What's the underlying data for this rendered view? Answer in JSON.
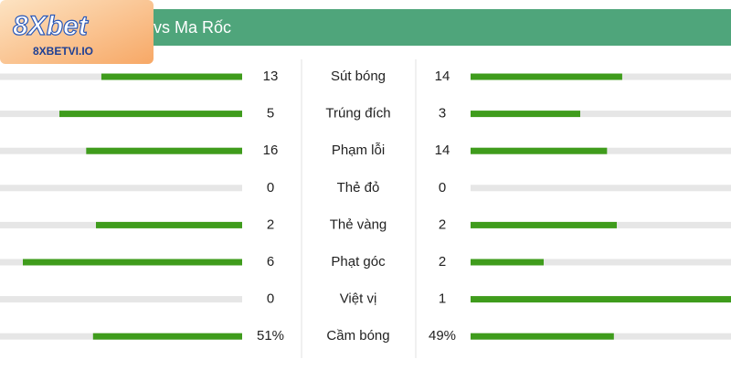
{
  "header": {
    "title": "vs Ma Rốc"
  },
  "logo": {
    "brand": "8Xbet",
    "site": "8XBETVI.IO"
  },
  "stats": [
    {
      "label": "Sút bóng",
      "home": 13,
      "away": 14
    },
    {
      "label": "Trúng đích",
      "home": 5,
      "away": 3
    },
    {
      "label": "Phạm lỗi",
      "home": 16,
      "away": 14
    },
    {
      "label": "Thẻ đỏ",
      "home": 0,
      "away": 0
    },
    {
      "label": "Thẻ vàng",
      "home": 2,
      "away": 2
    },
    {
      "label": "Phạt góc",
      "home": 6,
      "away": 2
    },
    {
      "label": "Việt vị",
      "home": 0,
      "away": 1
    },
    {
      "label": "Cầm bóng",
      "home": 51,
      "away": 49,
      "home_label": "51%",
      "away_label": "49%"
    }
  ]
}
